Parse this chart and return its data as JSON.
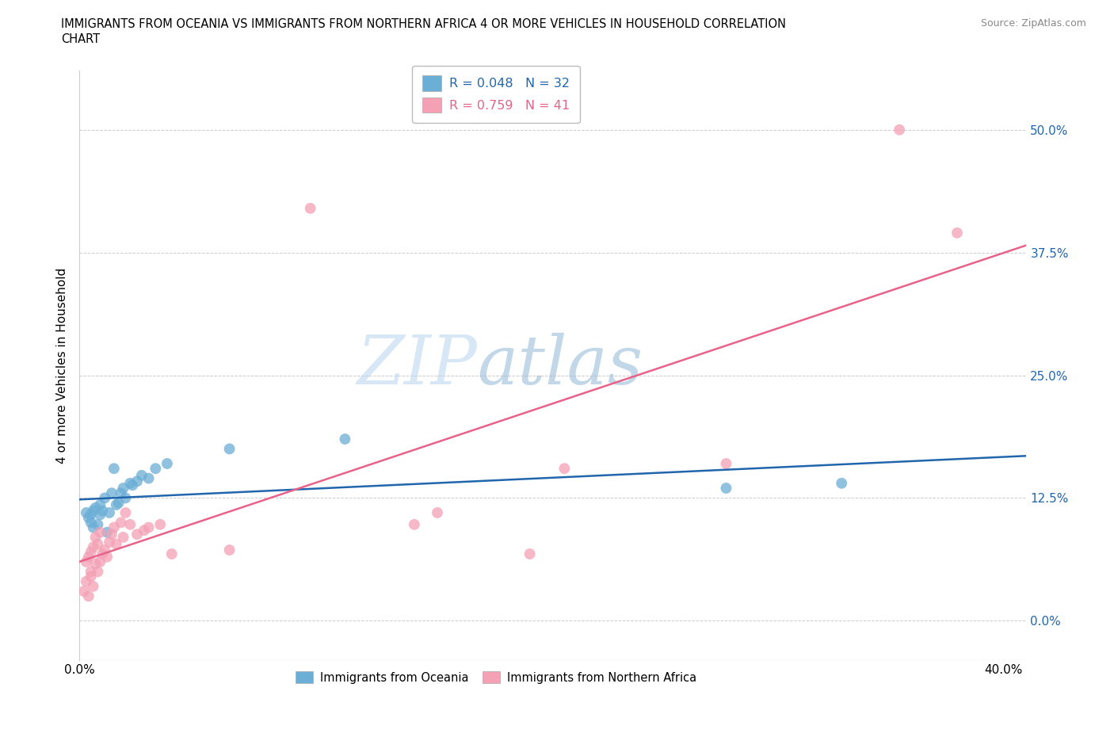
{
  "title_line1": "IMMIGRANTS FROM OCEANIA VS IMMIGRANTS FROM NORTHERN AFRICA 4 OR MORE VEHICLES IN HOUSEHOLD CORRELATION",
  "title_line2": "CHART",
  "source": "Source: ZipAtlas.com",
  "ylabel": "4 or more Vehicles in Household",
  "xlim": [
    0.0,
    0.41
  ],
  "ylim": [
    -0.04,
    0.56
  ],
  "yticks": [
    0.0,
    0.125,
    0.25,
    0.375,
    0.5
  ],
  "ytick_labels": [
    "0.0%",
    "12.5%",
    "25.0%",
    "37.5%",
    "50.0%"
  ],
  "xticks": [
    0.0,
    0.1,
    0.2,
    0.3,
    0.4
  ],
  "xtick_labels": [
    "0.0%",
    "",
    "",
    "",
    "40.0%"
  ],
  "r_oceania": 0.048,
  "n_oceania": 32,
  "r_africa": 0.759,
  "n_africa": 41,
  "color_oceania": "#6baed6",
  "color_africa": "#f4a0b5",
  "line_color_oceania": "#2166ac",
  "line_color_africa": "#e8628a",
  "watermark_zip": "ZIP",
  "watermark_atlas": "atlas",
  "oceania_x": [
    0.003,
    0.004,
    0.005,
    0.005,
    0.006,
    0.006,
    0.007,
    0.008,
    0.009,
    0.009,
    0.01,
    0.011,
    0.012,
    0.013,
    0.014,
    0.015,
    0.016,
    0.017,
    0.018,
    0.019,
    0.02,
    0.022,
    0.023,
    0.025,
    0.027,
    0.03,
    0.033,
    0.038,
    0.065,
    0.115,
    0.28,
    0.33
  ],
  "oceania_y": [
    0.11,
    0.105,
    0.108,
    0.1,
    0.112,
    0.095,
    0.115,
    0.098,
    0.118,
    0.108,
    0.112,
    0.125,
    0.09,
    0.11,
    0.13,
    0.155,
    0.118,
    0.12,
    0.13,
    0.135,
    0.125,
    0.14,
    0.138,
    0.142,
    0.148,
    0.145,
    0.155,
    0.16,
    0.175,
    0.185,
    0.135,
    0.14
  ],
  "africa_x": [
    0.002,
    0.003,
    0.003,
    0.004,
    0.004,
    0.005,
    0.005,
    0.005,
    0.006,
    0.006,
    0.007,
    0.007,
    0.008,
    0.008,
    0.009,
    0.009,
    0.01,
    0.011,
    0.012,
    0.013,
    0.014,
    0.015,
    0.016,
    0.018,
    0.019,
    0.02,
    0.022,
    0.025,
    0.028,
    0.03,
    0.035,
    0.04,
    0.065,
    0.1,
    0.145,
    0.155,
    0.195,
    0.21,
    0.28,
    0.355,
    0.38
  ],
  "africa_y": [
    0.03,
    0.04,
    0.06,
    0.025,
    0.065,
    0.045,
    0.07,
    0.05,
    0.035,
    0.075,
    0.058,
    0.085,
    0.05,
    0.078,
    0.06,
    0.09,
    0.068,
    0.072,
    0.065,
    0.08,
    0.088,
    0.095,
    0.078,
    0.1,
    0.085,
    0.11,
    0.098,
    0.088,
    0.092,
    0.095,
    0.098,
    0.068,
    0.072,
    0.42,
    0.098,
    0.11,
    0.068,
    0.155,
    0.16,
    0.5,
    0.395
  ]
}
